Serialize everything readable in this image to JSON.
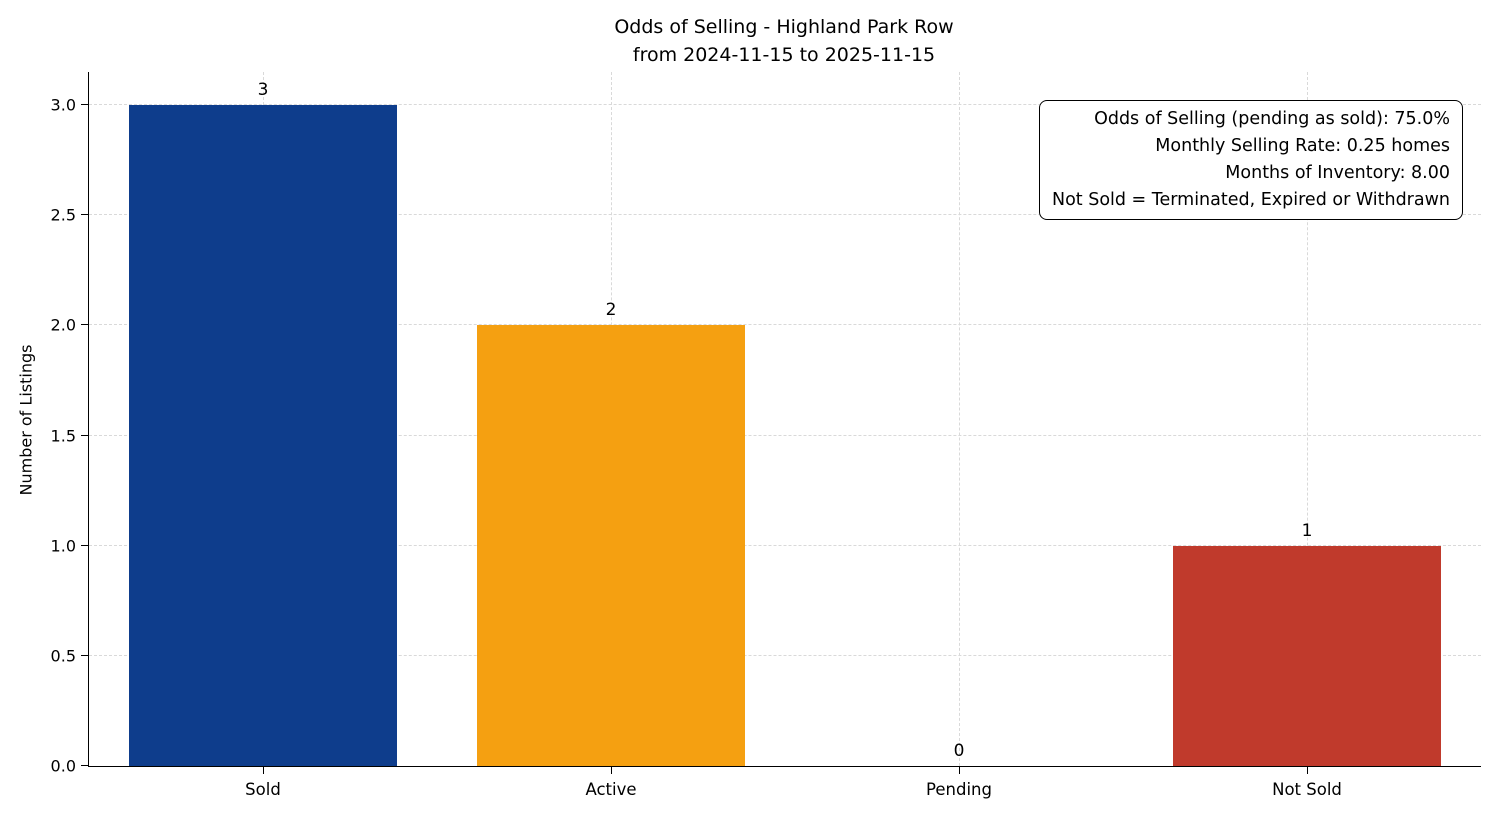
{
  "chart_data": {
    "type": "bar",
    "title": "Odds of Selling - Highland Park Row",
    "subtitle": "from 2024-11-15 to 2025-11-15",
    "categories": [
      "Sold",
      "Active",
      "Pending",
      "Not Sold"
    ],
    "values": [
      3,
      2,
      0,
      1
    ],
    "value_labels": [
      "3",
      "2",
      "0",
      "1"
    ],
    "bar_colors": [
      "#0e3d8c",
      "#f5a011",
      null,
      "#c03a2c"
    ],
    "xlabel": "",
    "ylabel": "Number of Listings",
    "ylim": [
      0,
      3.15
    ],
    "yticks": [
      0,
      0.5,
      1,
      1.5,
      2,
      2.5,
      3
    ],
    "ytick_labels": [
      "0.0",
      "0.5",
      "1.0",
      "1.5",
      "2.0",
      "2.5",
      "3.0"
    ],
    "grid": true,
    "legend": "none",
    "annotation_lines": [
      "Odds of Selling (pending as sold): 75.0%",
      "Monthly Selling Rate: 0.25 homes",
      "Months of Inventory: 8.00",
      "Not Sold = Terminated, Expired or Withdrawn"
    ]
  }
}
